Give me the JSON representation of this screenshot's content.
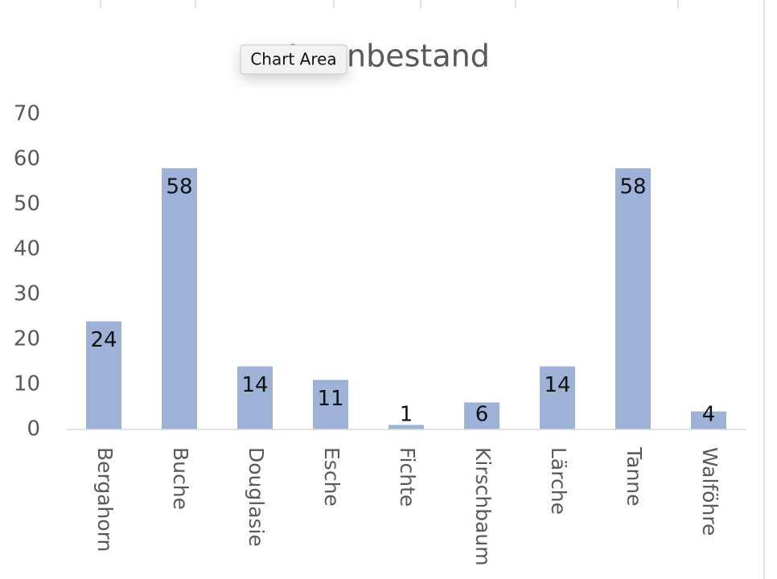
{
  "chart_data": {
    "type": "bar",
    "title": "Artenbestand",
    "categories": [
      "Bergahorn",
      "Buche",
      "Douglasie",
      "Esche",
      "Fichte",
      "Kirschbaum",
      "Lärche",
      "Tanne",
      "Walföhre"
    ],
    "values": [
      24,
      58,
      14,
      11,
      1,
      6,
      14,
      58,
      4
    ],
    "color": "#9db2d6",
    "ylim": [
      0,
      70
    ],
    "yticks": [
      0,
      10,
      20,
      30,
      40,
      50,
      60,
      70
    ],
    "grid": false
  },
  "tooltip": "Chart Area"
}
